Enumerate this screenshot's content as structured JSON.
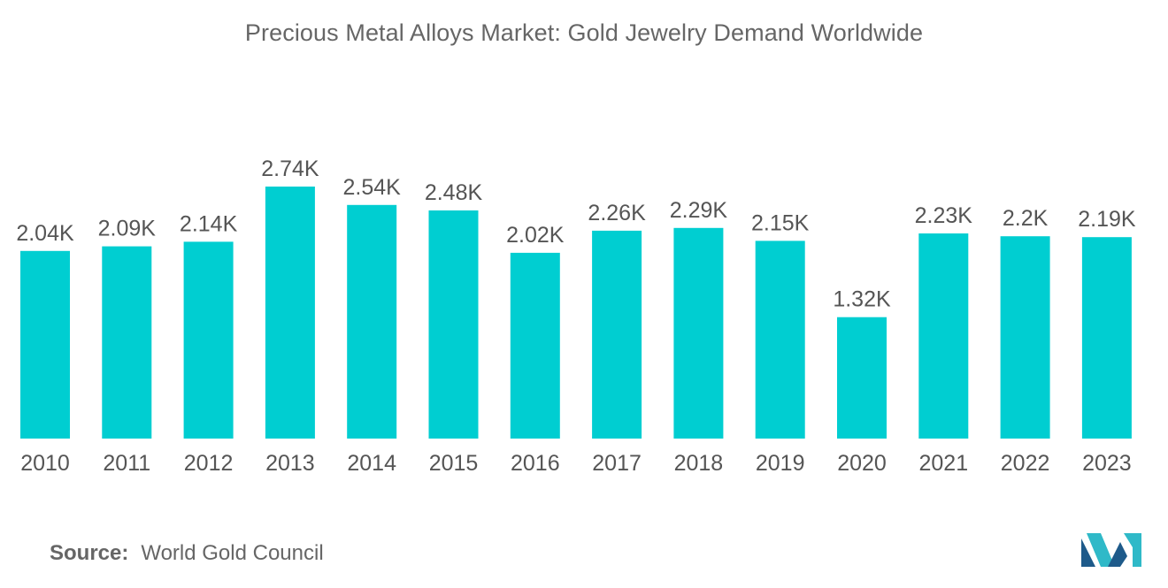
{
  "chart_data": {
    "type": "bar",
    "title": "Precious Metal Alloys Market: Gold Jewelry Demand Worldwide",
    "categories": [
      "2010",
      "2011",
      "2012",
      "2013",
      "2014",
      "2015",
      "2016",
      "2017",
      "2018",
      "2019",
      "2020",
      "2021",
      "2022",
      "2023"
    ],
    "values": [
      2.04,
      2.09,
      2.14,
      2.74,
      2.54,
      2.48,
      2.02,
      2.26,
      2.29,
      2.15,
      1.32,
      2.23,
      2.2,
      2.19
    ],
    "data_labels": [
      "2.04K",
      "2.09K",
      "2.14K",
      "2.74K",
      "2.54K",
      "2.48K",
      "2.02K",
      "2.26K",
      "2.29K",
      "2.15K",
      "1.32K",
      "2.23K",
      "2.2K",
      "2.19K"
    ],
    "xlabel": "",
    "ylabel": "",
    "ylim": [
      0,
      2.74
    ],
    "grid": false,
    "legend": "none",
    "bar_color": "#00CED1"
  },
  "footer": {
    "source_label": "Source:",
    "source_value": "World Gold Council"
  },
  "logo": {
    "icon": "mordor-logo-icon",
    "colors": [
      "#1e5a8a",
      "#2fb9c8"
    ]
  }
}
